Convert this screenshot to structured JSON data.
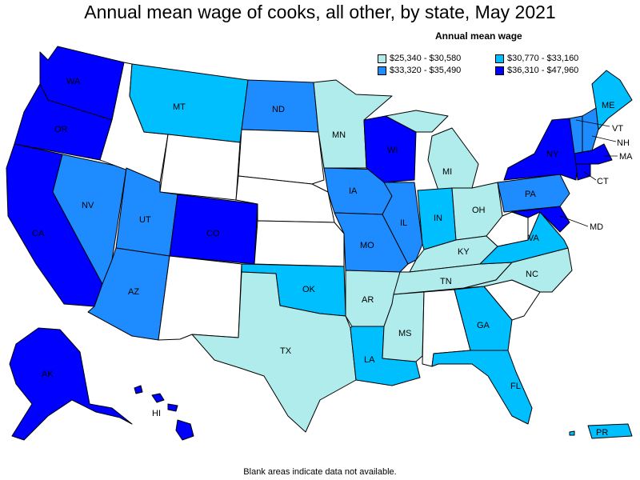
{
  "title": "Annual mean wage of cooks, all other, by state, May 2021",
  "legend": {
    "title": "Annual mean wage",
    "items": [
      {
        "label": "$25,340 - $30,580",
        "color": "#b0ecec"
      },
      {
        "label": "$30,770 - $33,160",
        "color": "#00bfff"
      },
      {
        "label": "$33,320 - $35,490",
        "color": "#1e8cff"
      },
      {
        "label": "$36,310 - $47,960",
        "color": "#0000ff"
      }
    ]
  },
  "footnote": "Blank areas indicate data not available.",
  "colors": {
    "no_data": "#ffffff",
    "border": "#000000"
  },
  "states": {
    "WA": "WA",
    "OR": "OR",
    "CA": "CA",
    "NV": "NV",
    "ID": "",
    "MT": "MT",
    "WY": "",
    "UT": "UT",
    "AZ": "AZ",
    "CO": "CO",
    "NM": "",
    "ND": "ND",
    "SD": "",
    "NE": "",
    "KS": "",
    "OK": "OK",
    "TX": "TX",
    "MN": "MN",
    "IA": "IA",
    "MO": "MO",
    "AR": "AR",
    "LA": "LA",
    "WI": "WI",
    "IL": "IL",
    "MI": "MI",
    "IN": "IN",
    "OH": "OH",
    "KY": "KY",
    "TN": "TN",
    "MS": "MS",
    "AL": "",
    "GA": "GA",
    "FL": "FL",
    "SC": "",
    "NC": "NC",
    "VA": "VA",
    "WV": "",
    "PA": "PA",
    "NY": "NY",
    "ME": "ME",
    "VT": "VT",
    "NH": "NH",
    "MA": "MA",
    "CT": "CT",
    "MD": "MD",
    "AK": "AK",
    "HI": "HI",
    "PR": "PR"
  }
}
